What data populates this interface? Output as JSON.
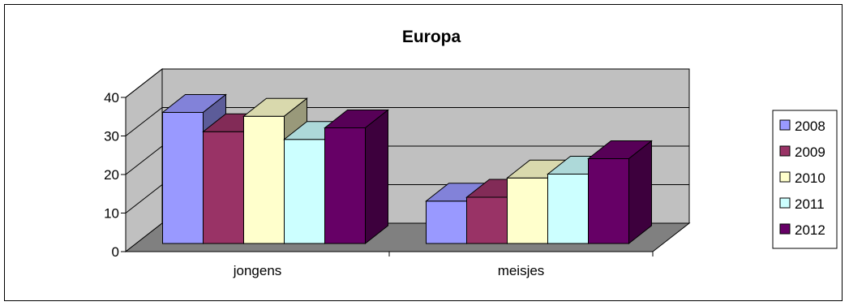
{
  "chart_data": {
    "type": "bar",
    "style": "3d-clustered",
    "title": "Europa",
    "categories": [
      "jongens",
      "meisjes"
    ],
    "series": [
      {
        "name": "2008",
        "values": [
          34,
          11
        ],
        "color": "#9999FF"
      },
      {
        "name": "2009",
        "values": [
          29,
          12
        ],
        "color": "#993366"
      },
      {
        "name": "2010",
        "values": [
          33,
          17
        ],
        "color": "#FFFFCC"
      },
      {
        "name": "2011",
        "values": [
          27,
          18
        ],
        "color": "#CCFFFF"
      },
      {
        "name": "2012",
        "values": [
          30,
          22
        ],
        "color": "#660066"
      }
    ],
    "yticks": [
      "0",
      "10",
      "20",
      "30",
      "40"
    ],
    "ylim": [
      0,
      40
    ],
    "grid": true,
    "wall_color": "#C0C0C0",
    "floor_color": "#808080",
    "legend_position": "right"
  }
}
